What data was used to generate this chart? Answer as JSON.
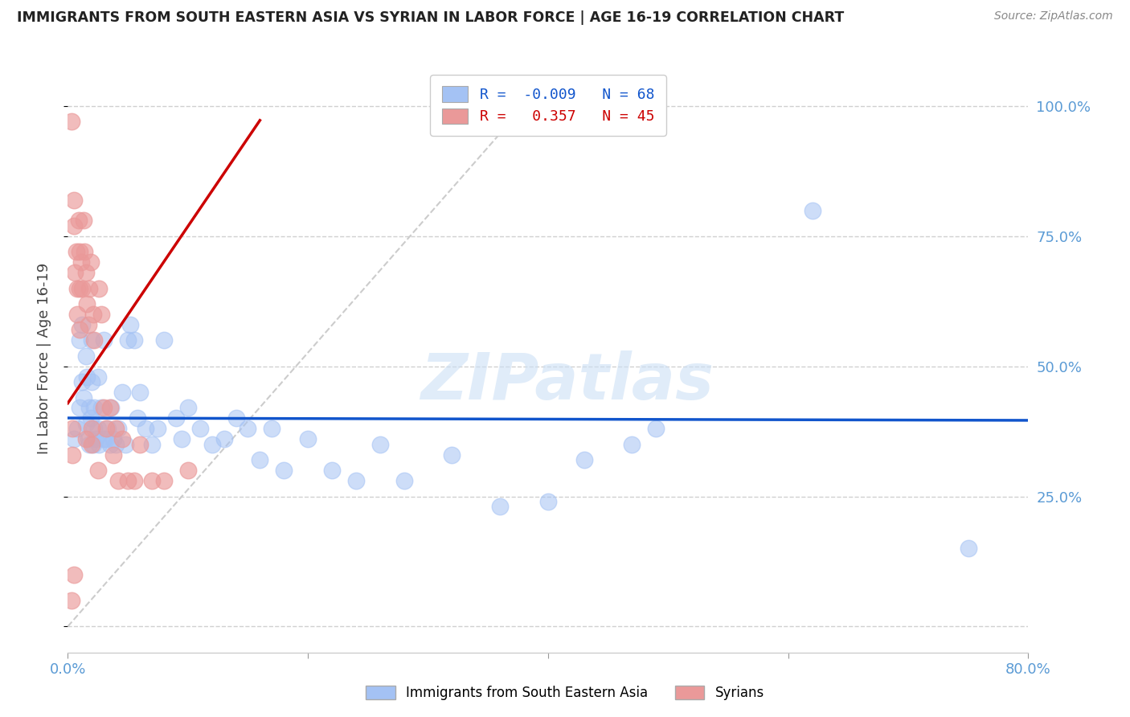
{
  "title": "IMMIGRANTS FROM SOUTH EASTERN ASIA VS SYRIAN IN LABOR FORCE | AGE 16-19 CORRELATION CHART",
  "source": "Source: ZipAtlas.com",
  "ylabel": "In Labor Force | Age 16-19",
  "xlim": [
    0.0,
    0.8
  ],
  "ylim": [
    -0.05,
    1.08
  ],
  "blue_R": -0.009,
  "blue_N": 68,
  "pink_R": 0.357,
  "pink_N": 45,
  "blue_color": "#a4c2f4",
  "pink_color": "#ea9999",
  "blue_line_color": "#1155cc",
  "pink_line_color": "#cc0000",
  "diag_color": "#cccccc",
  "blue_scatter_x": [
    0.005,
    0.008,
    0.01,
    0.01,
    0.012,
    0.012,
    0.013,
    0.015,
    0.015,
    0.016,
    0.017,
    0.018,
    0.018,
    0.019,
    0.02,
    0.02,
    0.021,
    0.022,
    0.022,
    0.023,
    0.025,
    0.025,
    0.026,
    0.028,
    0.03,
    0.03,
    0.032,
    0.033,
    0.035,
    0.036,
    0.038,
    0.04,
    0.042,
    0.045,
    0.048,
    0.05,
    0.052,
    0.055,
    0.058,
    0.06,
    0.065,
    0.07,
    0.075,
    0.08,
    0.09,
    0.095,
    0.1,
    0.11,
    0.12,
    0.13,
    0.14,
    0.15,
    0.16,
    0.17,
    0.18,
    0.2,
    0.22,
    0.24,
    0.26,
    0.28,
    0.32,
    0.36,
    0.4,
    0.43,
    0.47,
    0.49,
    0.62,
    0.75
  ],
  "blue_scatter_y": [
    0.36,
    0.38,
    0.55,
    0.42,
    0.58,
    0.47,
    0.44,
    0.52,
    0.39,
    0.48,
    0.36,
    0.42,
    0.35,
    0.4,
    0.55,
    0.47,
    0.35,
    0.38,
    0.42,
    0.36,
    0.38,
    0.48,
    0.35,
    0.42,
    0.36,
    0.55,
    0.36,
    0.38,
    0.35,
    0.42,
    0.36,
    0.35,
    0.38,
    0.45,
    0.35,
    0.55,
    0.58,
    0.55,
    0.4,
    0.45,
    0.38,
    0.35,
    0.38,
    0.55,
    0.4,
    0.36,
    0.42,
    0.38,
    0.35,
    0.36,
    0.4,
    0.38,
    0.32,
    0.38,
    0.3,
    0.36,
    0.3,
    0.28,
    0.35,
    0.28,
    0.33,
    0.23,
    0.24,
    0.32,
    0.35,
    0.38,
    0.8,
    0.15
  ],
  "pink_scatter_x": [
    0.003,
    0.004,
    0.004,
    0.005,
    0.005,
    0.005,
    0.006,
    0.007,
    0.008,
    0.008,
    0.009,
    0.01,
    0.01,
    0.01,
    0.011,
    0.012,
    0.013,
    0.014,
    0.015,
    0.015,
    0.016,
    0.017,
    0.018,
    0.019,
    0.02,
    0.02,
    0.021,
    0.022,
    0.025,
    0.026,
    0.028,
    0.03,
    0.032,
    0.035,
    0.038,
    0.04,
    0.042,
    0.045,
    0.05,
    0.055,
    0.06,
    0.07,
    0.08,
    0.1,
    0.003
  ],
  "pink_scatter_y": [
    0.97,
    0.38,
    0.33,
    0.82,
    0.77,
    0.1,
    0.68,
    0.72,
    0.65,
    0.6,
    0.78,
    0.72,
    0.65,
    0.57,
    0.7,
    0.65,
    0.78,
    0.72,
    0.68,
    0.36,
    0.62,
    0.58,
    0.65,
    0.7,
    0.38,
    0.35,
    0.6,
    0.55,
    0.3,
    0.65,
    0.6,
    0.42,
    0.38,
    0.42,
    0.33,
    0.38,
    0.28,
    0.36,
    0.28,
    0.28,
    0.35,
    0.28,
    0.28,
    0.3,
    0.05
  ],
  "watermark_text": "ZIPatlas",
  "background_color": "#ffffff",
  "grid_color": "#d0d0d0",
  "tick_color": "#5b9bd5",
  "label_color": "#5b9bd5"
}
